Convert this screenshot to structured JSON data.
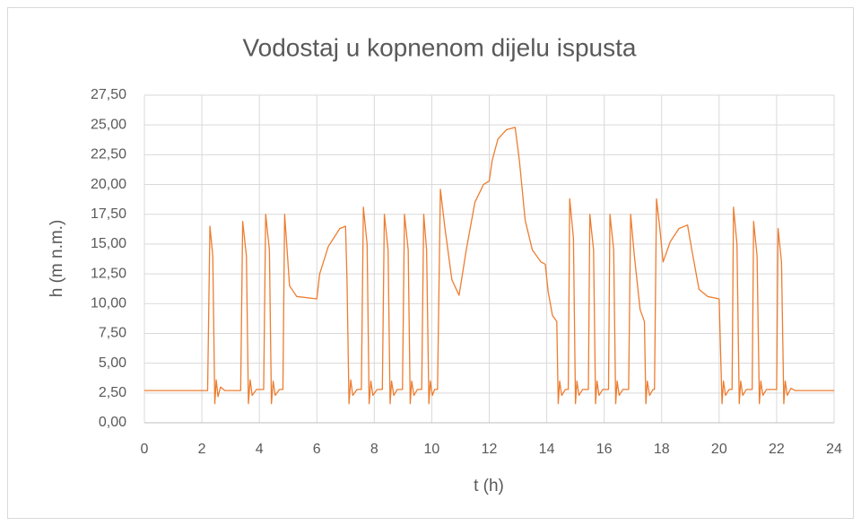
{
  "chart_data": {
    "type": "line",
    "title": "Vodostaj u kopnenom dijelu ispusta",
    "x_label": "t  (h)",
    "y_label": "h  (m n.m.)",
    "xlim": [
      0,
      24
    ],
    "xticks": [
      0,
      2,
      4,
      6,
      8,
      10,
      12,
      14,
      16,
      18,
      20,
      22,
      24
    ],
    "ylim": [
      0,
      27.5
    ],
    "yticks": [
      {
        "value": 0,
        "label": "0,00"
      },
      {
        "value": 2.5,
        "label": "2,50"
      },
      {
        "value": 5,
        "label": "5,00"
      },
      {
        "value": 7.5,
        "label": "7,50"
      },
      {
        "value": 10,
        "label": "10,00"
      },
      {
        "value": 12.5,
        "label": "12,50"
      },
      {
        "value": 15,
        "label": "15,00"
      },
      {
        "value": 17.5,
        "label": "17,50"
      },
      {
        "value": 20,
        "label": "20,00"
      },
      {
        "value": 22.5,
        "label": "22,50"
      },
      {
        "value": 25,
        "label": "25,00"
      },
      {
        "value": 27.5,
        "label": "27,50"
      }
    ],
    "grid": true,
    "series": [
      {
        "color": "#ed7d31",
        "x": [
          0,
          2.2,
          2.28,
          2.38,
          2.45,
          2.5,
          2.56,
          2.65,
          2.8,
          3.35,
          3.42,
          3.55,
          3.62,
          3.68,
          3.75,
          3.9,
          4.15,
          4.22,
          4.35,
          4.42,
          4.48,
          4.55,
          4.7,
          4.82,
          4.88,
          4.98,
          5.05,
          5.3,
          6.0,
          6.1,
          6.4,
          6.8,
          7.0,
          7.05,
          7.12,
          7.18,
          7.25,
          7.4,
          7.55,
          7.62,
          7.75,
          7.82,
          7.88,
          7.95,
          8.1,
          8.28,
          8.35,
          8.48,
          8.55,
          8.6,
          8.68,
          8.8,
          8.98,
          9.05,
          9.18,
          9.25,
          9.3,
          9.38,
          9.5,
          9.65,
          9.72,
          9.82,
          9.9,
          9.95,
          10.02,
          10.1,
          10.2,
          10.3,
          10.45,
          10.7,
          10.95,
          11.2,
          11.5,
          11.8,
          12.0,
          12.1,
          12.3,
          12.6,
          12.9,
          13.05,
          13.25,
          13.5,
          13.8,
          13.95,
          14.05,
          14.2,
          14.35,
          14.4,
          14.45,
          14.52,
          14.65,
          14.75,
          14.8,
          14.93,
          15.0,
          15.05,
          15.12,
          15.25,
          15.45,
          15.5,
          15.63,
          15.7,
          15.75,
          15.82,
          15.95,
          16.15,
          16.2,
          16.33,
          16.4,
          16.45,
          16.52,
          16.65,
          16.85,
          16.92,
          17.05,
          17.25,
          17.4,
          17.45,
          17.5,
          17.58,
          17.7,
          17.75,
          17.82,
          17.95,
          18.05,
          18.3,
          18.6,
          18.9,
          19.05,
          19.3,
          19.6,
          20.0,
          20.05,
          20.1,
          20.15,
          20.22,
          20.35,
          20.45,
          20.5,
          20.62,
          20.7,
          20.75,
          20.82,
          20.95,
          21.15,
          21.2,
          21.32,
          21.4,
          21.45,
          21.52,
          21.65,
          22.0,
          22.05,
          22.17,
          22.25,
          22.3,
          22.37,
          22.5,
          22.65,
          24
        ],
        "values": [
          2.7,
          2.7,
          16.5,
          14,
          1.6,
          3.6,
          2.2,
          3.0,
          2.7,
          2.7,
          16.9,
          14,
          1.6,
          3.6,
          2.3,
          2.8,
          2.8,
          17.5,
          14.5,
          1.6,
          3.5,
          2.3,
          2.8,
          2.8,
          17.5,
          14,
          11.5,
          10.6,
          10.4,
          12.5,
          14.8,
          16.3,
          16.5,
          12,
          1.6,
          3.6,
          2.3,
          2.8,
          2.8,
          18.1,
          15,
          1.6,
          3.5,
          2.3,
          2.8,
          2.8,
          17.5,
          14.5,
          1.6,
          3.5,
          2.3,
          2.8,
          2.8,
          17.5,
          14.5,
          1.6,
          3.5,
          2.3,
          2.8,
          2.8,
          17.5,
          14.5,
          1.6,
          3.5,
          2.3,
          2.8,
          2.8,
          19.6,
          16.5,
          12,
          10.7,
          14.5,
          18.5,
          20,
          20.3,
          22,
          23.8,
          24.6,
          24.8,
          22,
          17,
          14.5,
          13.5,
          13.3,
          11,
          9,
          8.5,
          1.6,
          3.5,
          2.3,
          2.8,
          2.8,
          18.8,
          15.5,
          1.6,
          3.5,
          2.3,
          2.8,
          2.8,
          17.5,
          14.5,
          1.6,
          3.5,
          2.3,
          2.8,
          2.8,
          17.5,
          14.5,
          1.6,
          3.5,
          2.3,
          2.8,
          2.8,
          17.5,
          14,
          9.5,
          8.5,
          1.6,
          3.5,
          2.3,
          2.8,
          2.8,
          18.8,
          16,
          13.5,
          15.2,
          16.3,
          16.6,
          14.5,
          11.2,
          10.6,
          10.4,
          6,
          1.6,
          3.5,
          2.3,
          2.8,
          2.8,
          18.1,
          15,
          1.6,
          3.5,
          2.3,
          2.8,
          2.8,
          16.9,
          14,
          1.6,
          3.5,
          2.3,
          2.8,
          2.8,
          16.3,
          13.5,
          1.6,
          3.5,
          2.3,
          2.9,
          2.7,
          2.7
        ]
      }
    ]
  }
}
